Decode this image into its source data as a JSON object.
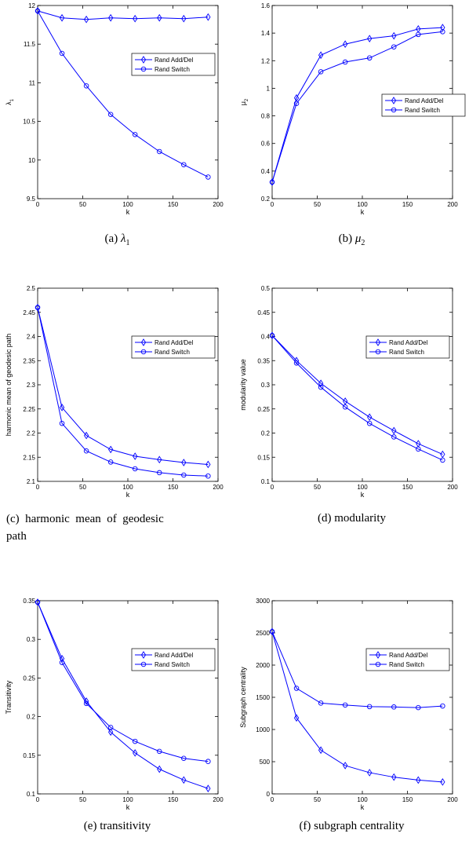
{
  "chart_data": [
    {
      "type": "line",
      "caption": "(a) λ1",
      "caption_label": "(a)",
      "caption_symbol": "λ",
      "caption_sub": "1",
      "xlabel": "k",
      "ylabel": "λ",
      "ylabel_sub": "1",
      "xlim": [
        0,
        200
      ],
      "ylim": [
        9.5,
        12
      ],
      "xticks": [
        0,
        50,
        100,
        150,
        200
      ],
      "yticks": [
        9.5,
        10,
        10.5,
        11,
        11.5,
        12
      ],
      "legend": "top-right",
      "series": [
        {
          "name": "Rand Add/Del",
          "marker": "diamond",
          "x": [
            0,
            27,
            54,
            81,
            108,
            135,
            162,
            189
          ],
          "y": [
            11.93,
            11.84,
            11.82,
            11.84,
            11.83,
            11.84,
            11.83,
            11.85
          ]
        },
        {
          "name": "Rand Switch",
          "marker": "circle",
          "x": [
            0,
            27,
            54,
            81,
            108,
            135,
            162,
            189
          ],
          "y": [
            11.93,
            11.38,
            10.96,
            10.59,
            10.33,
            10.11,
            9.94,
            9.78
          ]
        }
      ]
    },
    {
      "type": "line",
      "caption": "(b) μ2",
      "caption_label": "(b)",
      "caption_symbol": "μ",
      "caption_sub": "2",
      "xlabel": "k",
      "ylabel": "μ",
      "ylabel_sub": "2",
      "xlim": [
        0,
        200
      ],
      "ylim": [
        0.2,
        1.6
      ],
      "xticks": [
        0,
        50,
        100,
        150,
        200
      ],
      "yticks": [
        0.2,
        0.4,
        0.6,
        0.8,
        1,
        1.2,
        1.4,
        1.6
      ],
      "legend": "center-right",
      "series": [
        {
          "name": "Rand Add/Del",
          "marker": "diamond",
          "x": [
            0,
            27,
            54,
            81,
            108,
            135,
            162,
            189
          ],
          "y": [
            0.32,
            0.93,
            1.24,
            1.32,
            1.36,
            1.38,
            1.43,
            1.44
          ]
        },
        {
          "name": "Rand Switch",
          "marker": "circle",
          "x": [
            0,
            27,
            54,
            81,
            108,
            135,
            162,
            189
          ],
          "y": [
            0.32,
            0.89,
            1.12,
            1.19,
            1.22,
            1.3,
            1.39,
            1.41
          ]
        }
      ]
    },
    {
      "type": "line",
      "caption": "(c) harmonic mean of geodesic path",
      "caption_line1": "(c)  harmonic  mean  of  geodesic",
      "caption_line2": "path",
      "xlabel": "k",
      "ylabel": "harmonic mean of geodesic path",
      "xlim": [
        0,
        200
      ],
      "ylim": [
        2.1,
        2.5
      ],
      "xticks": [
        0,
        50,
        100,
        150,
        200
      ],
      "yticks": [
        2.1,
        2.15,
        2.2,
        2.25,
        2.3,
        2.35,
        2.4,
        2.45,
        2.5
      ],
      "legend": "top-right",
      "series": [
        {
          "name": "Rand Add/Del",
          "marker": "diamond",
          "x": [
            0,
            27,
            54,
            81,
            108,
            135,
            162,
            189
          ],
          "y": [
            2.46,
            2.253,
            2.195,
            2.166,
            2.152,
            2.145,
            2.139,
            2.135
          ]
        },
        {
          "name": "Rand Switch",
          "marker": "circle",
          "x": [
            0,
            27,
            54,
            81,
            108,
            135,
            162,
            189
          ],
          "y": [
            2.46,
            2.22,
            2.163,
            2.14,
            2.126,
            2.118,
            2.113,
            2.111
          ]
        }
      ]
    },
    {
      "type": "line",
      "caption": "(d) modularity",
      "xlabel": "k",
      "ylabel": "modularity value",
      "xlim": [
        0,
        200
      ],
      "ylim": [
        0.1,
        0.5
      ],
      "xticks": [
        0,
        50,
        100,
        150,
        200
      ],
      "yticks": [
        0.1,
        0.15,
        0.2,
        0.25,
        0.3,
        0.35,
        0.4,
        0.45,
        0.5
      ],
      "legend": "top-right",
      "series": [
        {
          "name": "Rand Add/Del",
          "marker": "diamond",
          "x": [
            0,
            27,
            54,
            81,
            108,
            135,
            162,
            189
          ],
          "y": [
            0.402,
            0.35,
            0.303,
            0.266,
            0.233,
            0.205,
            0.178,
            0.156
          ]
        },
        {
          "name": "Rand Switch",
          "marker": "circle",
          "x": [
            0,
            27,
            54,
            81,
            108,
            135,
            162,
            189
          ],
          "y": [
            0.402,
            0.345,
            0.295,
            0.254,
            0.22,
            0.192,
            0.167,
            0.144
          ]
        }
      ]
    },
    {
      "type": "line",
      "caption": "(e) transitivity",
      "xlabel": "k",
      "ylabel": "Transitivity",
      "xlim": [
        0,
        200
      ],
      "ylim": [
        0.1,
        0.35
      ],
      "xticks": [
        0,
        50,
        100,
        150,
        200
      ],
      "yticks": [
        0.1,
        0.15,
        0.2,
        0.25,
        0.3,
        0.35
      ],
      "legend": "top-right",
      "series": [
        {
          "name": "Rand Add/Del",
          "marker": "diamond",
          "x": [
            0,
            27,
            54,
            81,
            108,
            135,
            162,
            189
          ],
          "y": [
            0.348,
            0.275,
            0.22,
            0.18,
            0.153,
            0.132,
            0.118,
            0.107
          ]
        },
        {
          "name": "Rand Switch",
          "marker": "circle",
          "x": [
            0,
            27,
            54,
            81,
            108,
            135,
            162,
            189
          ],
          "y": [
            0.348,
            0.27,
            0.217,
            0.186,
            0.168,
            0.155,
            0.146,
            0.142
          ]
        }
      ]
    },
    {
      "type": "line",
      "caption": "(f) subgraph centrality",
      "xlabel": "k",
      "ylabel": "Subgraph centrality",
      "xlim": [
        0,
        200
      ],
      "ylim": [
        0,
        3000
      ],
      "xticks": [
        0,
        50,
        100,
        150,
        200
      ],
      "yticks": [
        0,
        500,
        1000,
        1500,
        2000,
        2500,
        3000
      ],
      "legend": "top-right",
      "series": [
        {
          "name": "Rand Add/Del",
          "marker": "diamond",
          "x": [
            0,
            27,
            54,
            81,
            108,
            135,
            162,
            189
          ],
          "y": [
            2520,
            1180,
            680,
            440,
            330,
            260,
            215,
            185
          ]
        },
        {
          "name": "Rand Switch",
          "marker": "circle",
          "x": [
            0,
            27,
            54,
            81,
            108,
            135,
            162,
            189
          ],
          "y": [
            2520,
            1640,
            1410,
            1380,
            1355,
            1350,
            1340,
            1365
          ]
        }
      ]
    }
  ],
  "colors": {
    "line": "#0000ff",
    "axis": "#000000"
  }
}
